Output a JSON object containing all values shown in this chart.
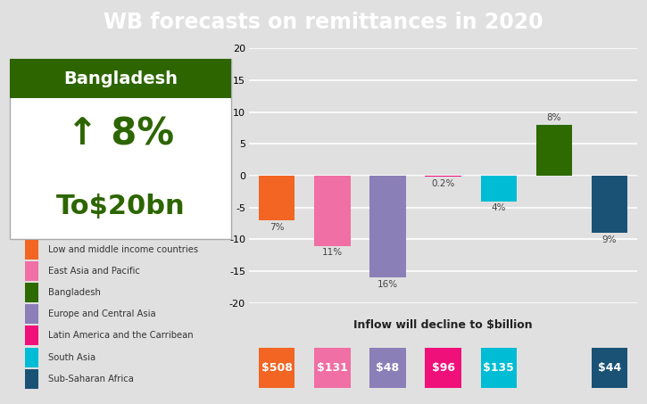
{
  "title": "WB forecasts on remittances in 2020",
  "title_bg": "#d0103a",
  "title_color": "#ffffff",
  "bg_color": "#e0e0e0",
  "chart_bg": "#e0e0e0",
  "values": [
    -7,
    -11,
    -16,
    -0.2,
    -4,
    8,
    -9
  ],
  "bar_colors": [
    "#f26522",
    "#f06fa4",
    "#8b7fb8",
    "#f0107a",
    "#00bcd4",
    "#2d6a00",
    "#1a5276"
  ],
  "bar_label_display": [
    "7%",
    "11%",
    "16%",
    "0.2%",
    "4%",
    "8%",
    "9%"
  ],
  "inflow_values": [
    "$508",
    "$131",
    "$48",
    "$96",
    "$135",
    "$44"
  ],
  "inflow_colors": [
    "#f26522",
    "#f06fa4",
    "#8b7fb8",
    "#f0107a",
    "#00bcd4",
    "#1a5276"
  ],
  "inflow_bar_idx": [
    0,
    1,
    2,
    3,
    4,
    6
  ],
  "legend_labels": [
    "Low and middle income countries",
    "East Asia and Pacific",
    "Bangladesh",
    "Europe and Central Asia",
    "Latin America and the Carribean",
    "South Asia",
    "Sub-Saharan Africa"
  ],
  "legend_colors": [
    "#f26522",
    "#f06fa4",
    "#2d6a00",
    "#8b7fb8",
    "#f0107a",
    "#00bcd4",
    "#1a5276"
  ],
  "ylim": [
    -20,
    20
  ],
  "yticks": [
    -20,
    -15,
    -10,
    -5,
    0,
    5,
    10,
    15,
    20
  ],
  "xlabel_text": "Inflow will decline to $billion",
  "bangladesh_header_color": "#2d6600",
  "bangladesh_body_color": "#ffffff",
  "bangladesh_text_color": "#2d6600",
  "bangladesh_border_color": "#aaaaaa"
}
